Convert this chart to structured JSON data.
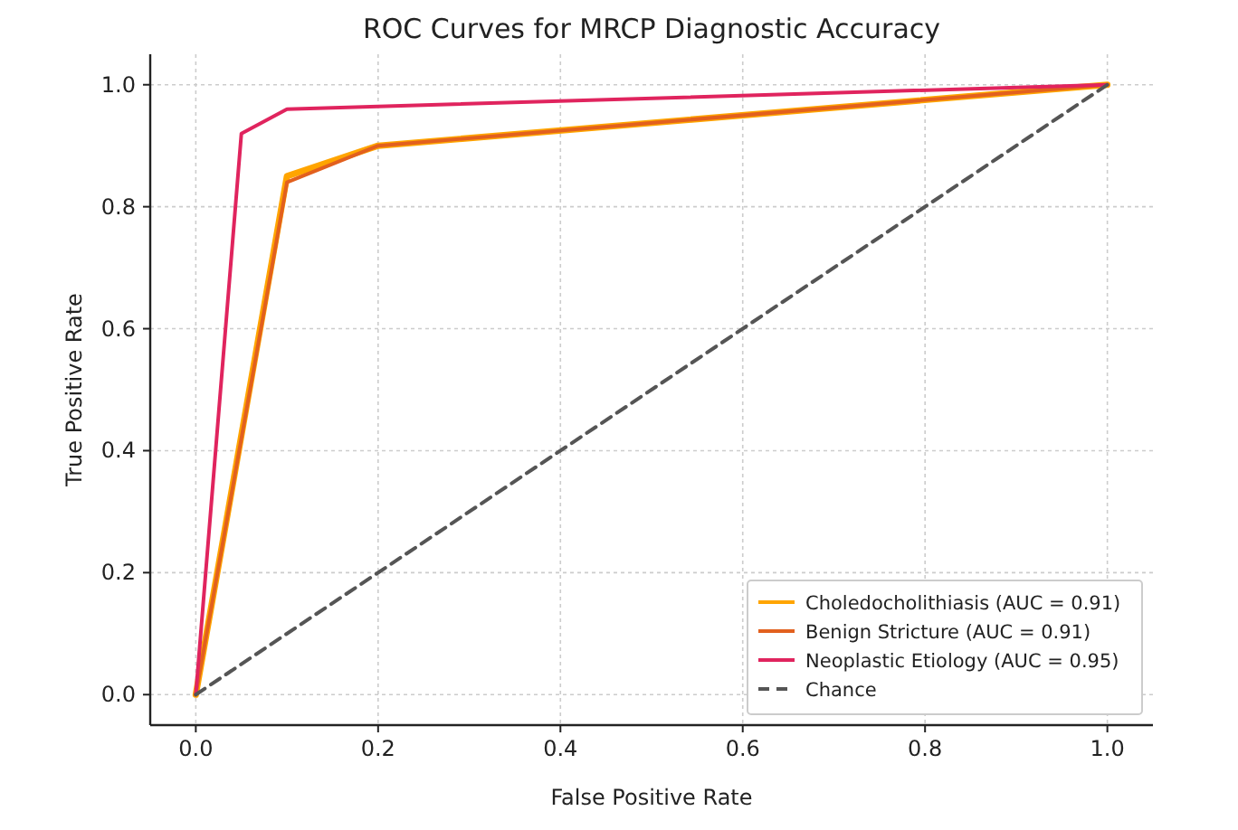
{
  "chart_data": {
    "type": "line",
    "title": "ROC Curves for MRCP Diagnostic Accuracy",
    "xlabel": "False Positive Rate",
    "ylabel": "True Positive Rate",
    "xlim": [
      -0.05,
      1.05
    ],
    "ylim": [
      -0.05,
      1.05
    ],
    "xticks": [
      {
        "value": 0,
        "label": "0.0"
      },
      {
        "value": 0.2,
        "label": "0.2"
      },
      {
        "value": 0.4,
        "label": "0.4"
      },
      {
        "value": 0.6,
        "label": "0.6"
      },
      {
        "value": 0.8,
        "label": "0.8"
      },
      {
        "value": 1,
        "label": "1.0"
      }
    ],
    "yticks": [
      {
        "value": 0,
        "label": "0.0"
      },
      {
        "value": 0.2,
        "label": "0.2"
      },
      {
        "value": 0.4,
        "label": "0.4"
      },
      {
        "value": 0.6,
        "label": "0.6"
      },
      {
        "value": 0.8,
        "label": "0.8"
      },
      {
        "value": 1,
        "label": "1.0"
      }
    ],
    "grid": true,
    "legend": "bottom right",
    "marker": "none",
    "line_style": "solid",
    "series": [
      {
        "name": "Choledocholithiasis (AUC = 0.91)",
        "color": "#ffa500",
        "x": [
          0,
          0.1,
          0.2,
          1
        ],
        "values": [
          0,
          0.85,
          0.9,
          1
        ]
      },
      {
        "name": "Benign Stricture (AUC = 0.91)",
        "color": "#e2601e",
        "x": [
          0,
          0.1,
          0.2,
          1
        ],
        "values": [
          0,
          0.84,
          0.9,
          1
        ]
      },
      {
        "name": "Neoplastic Etiology (AUC = 0.95)",
        "color": "#e0245e",
        "x": [
          0,
          0.05,
          0.1,
          1
        ],
        "values": [
          0,
          0.92,
          0.96,
          1
        ]
      },
      {
        "name": "Chance",
        "color": "#555555",
        "line_style": "dashed",
        "x": [
          0,
          1
        ],
        "values": [
          0,
          1
        ]
      }
    ]
  }
}
